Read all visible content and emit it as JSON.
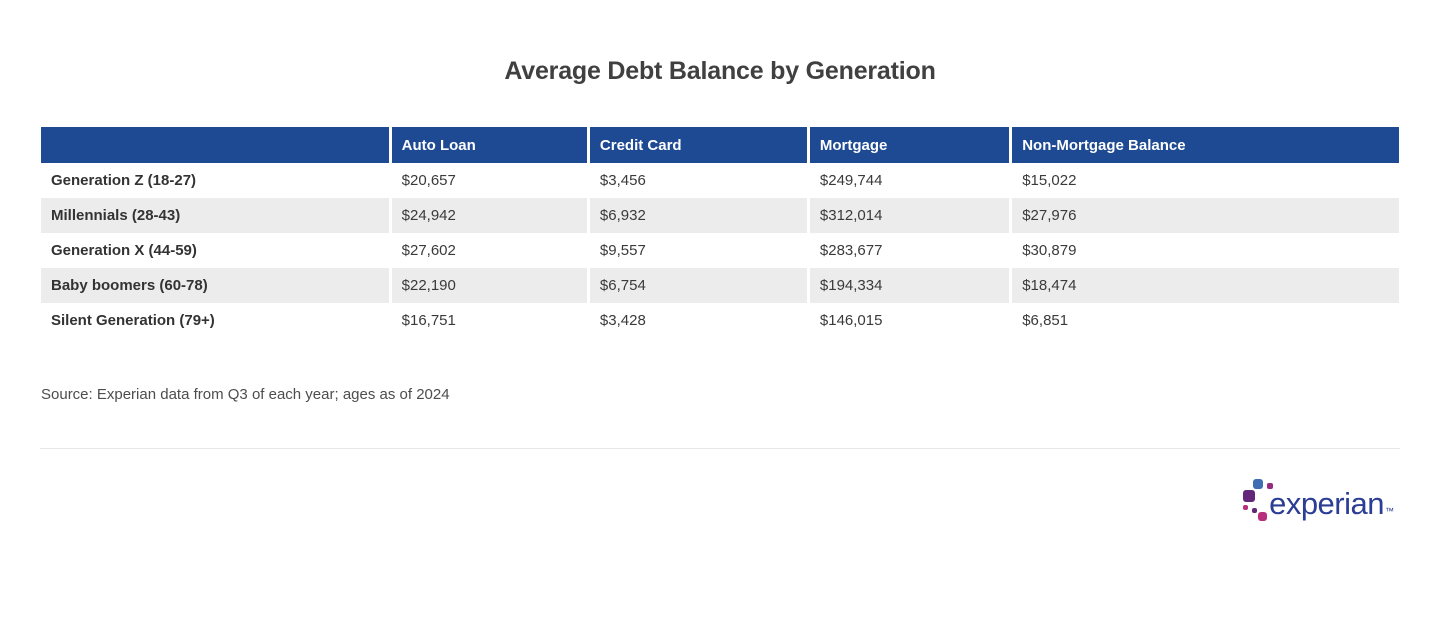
{
  "title": "Average Debt Balance by Generation",
  "table": {
    "columns": [
      "",
      "Auto Loan",
      "Credit Card",
      "Mortgage",
      "Non-Mortgage Balance"
    ],
    "rows": [
      {
        "label": "Generation Z (18-27)",
        "values": [
          "$20,657",
          "$3,456",
          "$249,744",
          "$15,022"
        ]
      },
      {
        "label": "Millennials (28-43)",
        "values": [
          "$24,942",
          "$6,932",
          "$312,014",
          "$27,976"
        ]
      },
      {
        "label": "Generation X (44-59)",
        "values": [
          "$27,602",
          "$9,557",
          "$283,677",
          "$30,879"
        ]
      },
      {
        "label": "Baby boomers (60-78)",
        "values": [
          "$22,190",
          "$6,754",
          "$194,334",
          "$18,474"
        ]
      },
      {
        "label": "Silent Generation (79+)",
        "values": [
          "$16,751",
          "$3,428",
          "$146,015",
          "$6,851"
        ]
      }
    ]
  },
  "source": "Source: Experian data from Q3 of each year; ages as of 2024",
  "logo": {
    "text": "experian",
    "trademark": "™"
  },
  "colors": {
    "header_background": "#1e4a94",
    "header_text": "#ffffff",
    "row_alternate": "#ececec",
    "title_text": "#404040",
    "body_text": "#3a3a3a",
    "logo_text_blue": "#2b3d94",
    "logo_light_blue": "#406eb3",
    "logo_purple": "#632678",
    "logo_magenta": "#982881",
    "logo_pink": "#ba2f7d"
  },
  "chart_data": {
    "type": "table",
    "title": "Average Debt Balance by Generation",
    "columns": [
      "Auto Loan",
      "Credit Card",
      "Mortgage",
      "Non-Mortgage Balance"
    ],
    "categories": [
      "Generation Z (18-27)",
      "Millennials (28-43)",
      "Generation X (44-59)",
      "Baby boomers (60-78)",
      "Silent Generation (79+)"
    ],
    "series": [
      {
        "name": "Auto Loan",
        "values": [
          20657,
          24942,
          27602,
          22190,
          16751
        ]
      },
      {
        "name": "Credit Card",
        "values": [
          3456,
          6932,
          9557,
          6754,
          3428
        ]
      },
      {
        "name": "Mortgage",
        "values": [
          249744,
          312014,
          283677,
          194334,
          146015
        ]
      },
      {
        "name": "Non-Mortgage Balance",
        "values": [
          15022,
          27976,
          30879,
          18474,
          6851
        ]
      }
    ],
    "source": "Source: Experian data from Q3 of each year; ages as of 2024"
  }
}
